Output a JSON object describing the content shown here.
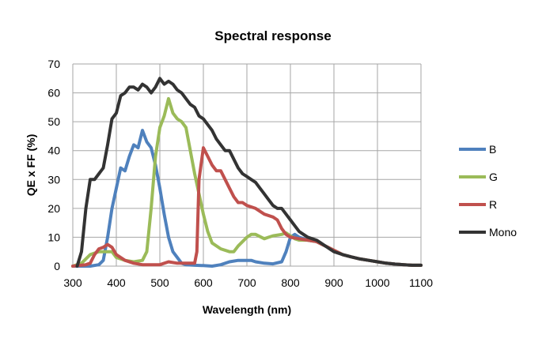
{
  "chart_data": {
    "type": "line",
    "title": "Spectral response",
    "xlabel": "Wavelength (nm)",
    "ylabel": "QE x FF (%)",
    "xlim": [
      300,
      1100
    ],
    "ylim": [
      0,
      70
    ],
    "xticks": [
      300,
      400,
      500,
      600,
      700,
      800,
      900,
      1000,
      1100
    ],
    "yticks": [
      0,
      10,
      20,
      30,
      40,
      50,
      60,
      70
    ],
    "grid": true,
    "legend_position": "right",
    "series": [
      {
        "name": "B",
        "color": "#4f81bd",
        "points": [
          [
            300,
            0
          ],
          [
            340,
            0
          ],
          [
            360,
            0.5
          ],
          [
            370,
            2
          ],
          [
            380,
            10
          ],
          [
            390,
            20
          ],
          [
            400,
            27
          ],
          [
            410,
            34
          ],
          [
            420,
            33
          ],
          [
            430,
            38
          ],
          [
            440,
            42
          ],
          [
            450,
            41
          ],
          [
            460,
            47
          ],
          [
            470,
            43
          ],
          [
            480,
            41
          ],
          [
            490,
            35
          ],
          [
            500,
            27
          ],
          [
            510,
            18
          ],
          [
            520,
            10
          ],
          [
            530,
            5
          ],
          [
            540,
            3
          ],
          [
            550,
            1
          ],
          [
            560,
            0.5
          ],
          [
            580,
            0.3
          ],
          [
            600,
            0.2
          ],
          [
            620,
            0
          ],
          [
            640,
            0.5
          ],
          [
            660,
            1.5
          ],
          [
            680,
            2
          ],
          [
            710,
            2
          ],
          [
            720,
            1.5
          ],
          [
            740,
            1
          ],
          [
            760,
            0.8
          ],
          [
            780,
            1.5
          ],
          [
            790,
            5
          ],
          [
            800,
            10
          ],
          [
            810,
            11
          ],
          [
            820,
            10
          ],
          [
            840,
            9
          ],
          [
            860,
            8.5
          ],
          [
            880,
            7
          ],
          [
            900,
            5.5
          ],
          [
            920,
            4
          ],
          [
            940,
            3.2
          ],
          [
            960,
            2.5
          ],
          [
            980,
            2
          ],
          [
            1000,
            1.5
          ],
          [
            1020,
            1
          ],
          [
            1040,
            0.7
          ],
          [
            1060,
            0.5
          ],
          [
            1080,
            0.3
          ],
          [
            1100,
            0.3
          ]
        ]
      },
      {
        "name": "G",
        "color": "#9bbb59",
        "points": [
          [
            300,
            0
          ],
          [
            320,
            1
          ],
          [
            340,
            4
          ],
          [
            360,
            5
          ],
          [
            380,
            5
          ],
          [
            390,
            5
          ],
          [
            400,
            3
          ],
          [
            410,
            2.5
          ],
          [
            420,
            2
          ],
          [
            440,
            1.5
          ],
          [
            460,
            2
          ],
          [
            470,
            5
          ],
          [
            480,
            20
          ],
          [
            490,
            38
          ],
          [
            500,
            48
          ],
          [
            510,
            52
          ],
          [
            520,
            58
          ],
          [
            530,
            53
          ],
          [
            540,
            51
          ],
          [
            550,
            50
          ],
          [
            560,
            48
          ],
          [
            570,
            40
          ],
          [
            580,
            32
          ],
          [
            590,
            25
          ],
          [
            600,
            18
          ],
          [
            610,
            12
          ],
          [
            620,
            8
          ],
          [
            640,
            6
          ],
          [
            660,
            5
          ],
          [
            670,
            5
          ],
          [
            680,
            7
          ],
          [
            700,
            10
          ],
          [
            710,
            11
          ],
          [
            720,
            11
          ],
          [
            740,
            9.5
          ],
          [
            750,
            10
          ],
          [
            760,
            10.5
          ],
          [
            780,
            11
          ],
          [
            790,
            11.5
          ],
          [
            800,
            10.5
          ],
          [
            810,
            9.5
          ],
          [
            820,
            9
          ],
          [
            840,
            9
          ],
          [
            860,
            8.5
          ],
          [
            880,
            7
          ],
          [
            900,
            5.5
          ],
          [
            920,
            4
          ],
          [
            940,
            3.2
          ],
          [
            960,
            2.5
          ],
          [
            980,
            2
          ],
          [
            1000,
            1.5
          ],
          [
            1020,
            1
          ],
          [
            1040,
            0.7
          ],
          [
            1060,
            0.5
          ],
          [
            1080,
            0.3
          ],
          [
            1100,
            0.3
          ]
        ]
      },
      {
        "name": "R",
        "color": "#c0504d",
        "points": [
          [
            300,
            0
          ],
          [
            330,
            0.5
          ],
          [
            340,
            1
          ],
          [
            350,
            4
          ],
          [
            360,
            6
          ],
          [
            370,
            6.5
          ],
          [
            380,
            7.5
          ],
          [
            390,
            6.5
          ],
          [
            400,
            4
          ],
          [
            420,
            2
          ],
          [
            440,
            1
          ],
          [
            460,
            0.5
          ],
          [
            500,
            0.5
          ],
          [
            520,
            1.5
          ],
          [
            540,
            1
          ],
          [
            580,
            1
          ],
          [
            585,
            5
          ],
          [
            590,
            30
          ],
          [
            600,
            41
          ],
          [
            610,
            38
          ],
          [
            620,
            35
          ],
          [
            630,
            33
          ],
          [
            640,
            33
          ],
          [
            650,
            30
          ],
          [
            660,
            27
          ],
          [
            670,
            24
          ],
          [
            680,
            22
          ],
          [
            690,
            22
          ],
          [
            700,
            21
          ],
          [
            720,
            20
          ],
          [
            740,
            18
          ],
          [
            760,
            17
          ],
          [
            770,
            16
          ],
          [
            780,
            13
          ],
          [
            790,
            11
          ],
          [
            800,
            10
          ],
          [
            820,
            9.5
          ],
          [
            840,
            9
          ],
          [
            860,
            8.5
          ],
          [
            880,
            7
          ],
          [
            900,
            5.5
          ],
          [
            920,
            4
          ],
          [
            940,
            3.2
          ],
          [
            960,
            2.5
          ],
          [
            980,
            2
          ],
          [
            1000,
            1.5
          ],
          [
            1020,
            1
          ],
          [
            1040,
            0.7
          ],
          [
            1060,
            0.5
          ],
          [
            1080,
            0.3
          ],
          [
            1100,
            0.3
          ]
        ]
      },
      {
        "name": "Mono",
        "color": "#333333",
        "points": [
          [
            310,
            0
          ],
          [
            320,
            5
          ],
          [
            330,
            20
          ],
          [
            340,
            30
          ],
          [
            350,
            30
          ],
          [
            360,
            32
          ],
          [
            370,
            34
          ],
          [
            380,
            42
          ],
          [
            390,
            51
          ],
          [
            400,
            53
          ],
          [
            410,
            59
          ],
          [
            420,
            60
          ],
          [
            430,
            62
          ],
          [
            440,
            62
          ],
          [
            450,
            61
          ],
          [
            460,
            63
          ],
          [
            470,
            62
          ],
          [
            480,
            60
          ],
          [
            490,
            62
          ],
          [
            500,
            65
          ],
          [
            510,
            63
          ],
          [
            520,
            64
          ],
          [
            530,
            63
          ],
          [
            540,
            61
          ],
          [
            550,
            60
          ],
          [
            560,
            58
          ],
          [
            570,
            56
          ],
          [
            580,
            55
          ],
          [
            590,
            52
          ],
          [
            600,
            51
          ],
          [
            610,
            49
          ],
          [
            620,
            47
          ],
          [
            630,
            44
          ],
          [
            640,
            42
          ],
          [
            650,
            40
          ],
          [
            660,
            40
          ],
          [
            670,
            37
          ],
          [
            680,
            34
          ],
          [
            690,
            32
          ],
          [
            700,
            31
          ],
          [
            710,
            30
          ],
          [
            720,
            29
          ],
          [
            730,
            27
          ],
          [
            740,
            25
          ],
          [
            750,
            23
          ],
          [
            760,
            21
          ],
          [
            770,
            20
          ],
          [
            780,
            20
          ],
          [
            790,
            18
          ],
          [
            800,
            16
          ],
          [
            810,
            14
          ],
          [
            820,
            12
          ],
          [
            830,
            11
          ],
          [
            840,
            10
          ],
          [
            850,
            9.5
          ],
          [
            860,
            9
          ],
          [
            870,
            8
          ],
          [
            880,
            7
          ],
          [
            890,
            6
          ],
          [
            900,
            5
          ],
          [
            920,
            4
          ],
          [
            940,
            3.2
          ],
          [
            960,
            2.5
          ],
          [
            980,
            2
          ],
          [
            1000,
            1.5
          ],
          [
            1020,
            1
          ],
          [
            1040,
            0.7
          ],
          [
            1060,
            0.5
          ],
          [
            1080,
            0.3
          ],
          [
            1100,
            0.3
          ]
        ]
      }
    ]
  }
}
